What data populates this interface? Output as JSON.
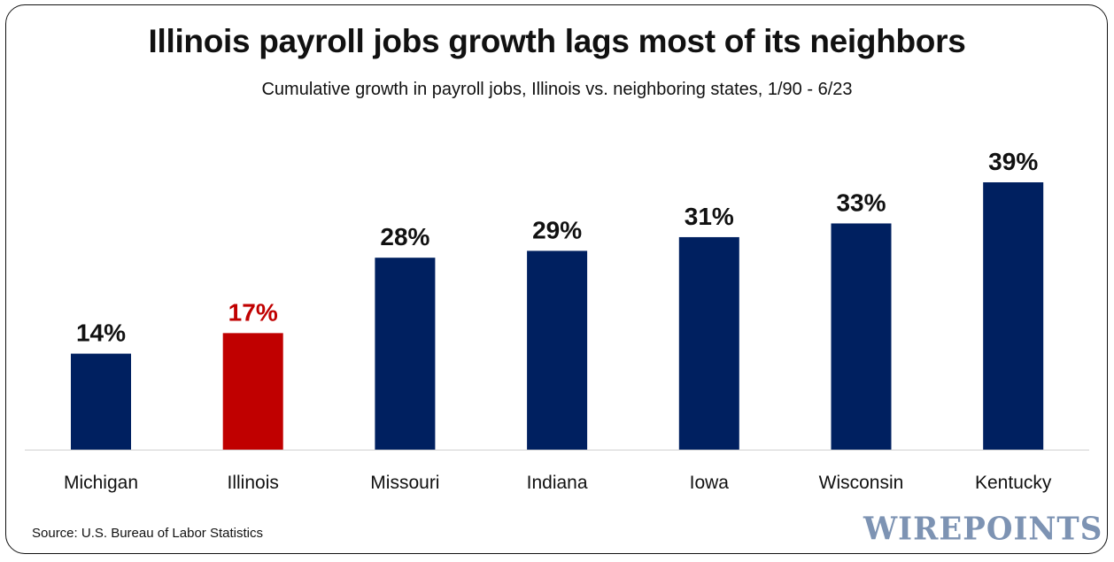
{
  "chart_data": {
    "type": "bar",
    "title": "Illinois payroll jobs growth lags most of its neighbors",
    "subtitle": "Cumulative growth in payroll jobs, Illinois vs. neighboring states, 1/90 - 6/23",
    "categories": [
      "Michigan",
      "Illinois",
      "Missouri",
      "Indiana",
      "Iowa",
      "Wisconsin",
      "Kentucky"
    ],
    "values": [
      14,
      17,
      28,
      29,
      31,
      33,
      39
    ],
    "data_labels": [
      "14%",
      "17%",
      "28%",
      "29%",
      "31%",
      "33%",
      "39%"
    ],
    "highlight": "Illinois",
    "colors": {
      "default": "#002060",
      "highlight": "#c00000",
      "highlight_label": "#c00000",
      "label": "#111111"
    },
    "xlabel": "",
    "ylabel": "",
    "ylim": [
      0,
      40
    ],
    "grid": false,
    "source": "Source: U.S. Bureau of Labor Statistics",
    "logo": "WIREPOINTS"
  }
}
